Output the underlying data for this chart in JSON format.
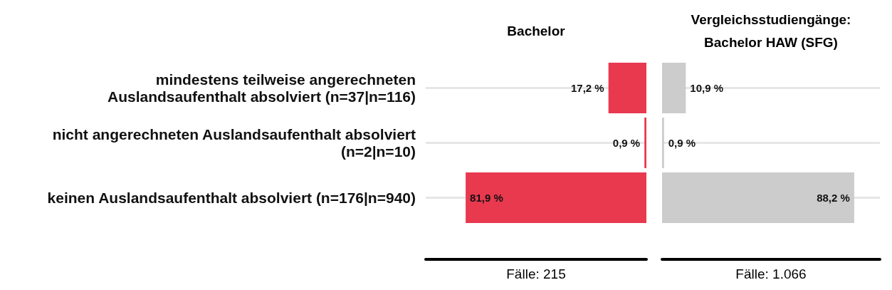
{
  "chart_data": [
    {
      "type": "bar",
      "orientation": "horizontal",
      "title": "Bachelor",
      "categories": [
        "mindestens teilweise angerechneten\nAuslandsaufenthalt absolviert (n=37|n=116)",
        "nicht angerechneten Auslandsaufenthalt absolviert\n(n=2|n=10)",
        "keinen Auslandsaufenthalt absolviert (n=176|n=940)"
      ],
      "values": [
        17.2,
        0.9,
        81.9
      ],
      "value_labels": [
        "17,2 %",
        "0,9 %",
        "81,9 %"
      ],
      "color": "#e8394f",
      "xlim": [
        100,
        0
      ],
      "grid": "y",
      "tick_labels": "y",
      "annotations": [
        "Fälle: 215"
      ]
    },
    {
      "type": "bar",
      "orientation": "horizontal",
      "title": "Vergleichsstudiengänge:\nBachelor HAW (SFG)",
      "categories": [
        null,
        null,
        null
      ],
      "values": [
        10.9,
        0.9,
        88.2
      ],
      "value_labels": [
        "10,9 %",
        "0,9 %",
        "88,2 %"
      ],
      "color": "#cccccc",
      "xlim": [
        0,
        100
      ],
      "grid": "y",
      "tick_labels": false,
      "annotations": [
        "Fälle: 1.066"
      ]
    }
  ]
}
